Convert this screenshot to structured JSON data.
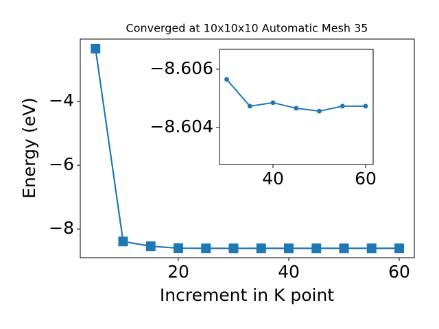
{
  "chart_data": [
    {
      "type": "line",
      "title": "Converged at 10x10x10 Automatic Mesh 35",
      "x_label": "Increment in K point",
      "y_label": "Energy (eV)",
      "x": [
        5,
        10,
        15,
        20,
        25,
        30,
        35,
        40,
        45,
        50,
        55,
        60
      ],
      "series": [
        {
          "color": "#1f77b4",
          "marker": "square",
          "values": [
            -2.34,
            -8.39,
            -8.54,
            -8.6,
            -8.605,
            -8.6057,
            -8.6047,
            -8.6049,
            -8.6047,
            -8.6046,
            -8.6047,
            -8.6047
          ]
        }
      ],
      "xlim": [
        2.24,
        62.73
      ],
      "ylim": [
        -8.9,
        -2.04
      ],
      "xticks": [
        20,
        40,
        60
      ],
      "yticks": [
        {
          "value": -8,
          "label": "−8"
        },
        {
          "value": -6,
          "label": "−6"
        },
        {
          "value": -4,
          "label": "−4"
        }
      ]
    },
    {
      "type": "line",
      "x": [
        30,
        35,
        40,
        45,
        50,
        55,
        60
      ],
      "series": [
        {
          "color": "#1f77b4",
          "marker": "circle",
          "values": [
            -8.60565,
            -8.60473,
            -8.60485,
            -8.60466,
            -8.60456,
            -8.60473,
            -8.60473
          ]
        }
      ],
      "xlim": [
        28.44,
        61.63
      ],
      "ylim": [
        -8.60273,
        -8.60668
      ],
      "xticks": [
        40,
        60
      ],
      "yticks": [
        {
          "value": -8.606,
          "label": "−8.606"
        },
        {
          "value": -8.604,
          "label": "−8.604"
        }
      ]
    }
  ]
}
